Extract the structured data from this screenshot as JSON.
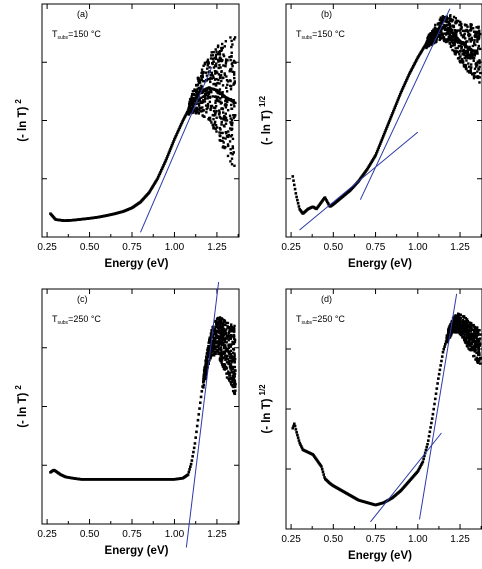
{
  "chart_data": [
    {
      "panel": "(a)",
      "type": "scatter",
      "annotation": {
        "main": "T",
        "sub": "subs",
        "rest": "=150 °C"
      },
      "xlabel": "Energy  (eV)",
      "ylabel": {
        "main": "(- ln T)",
        "exp": "2"
      },
      "xlim": [
        0.22,
        1.38
      ],
      "xticks": [
        0.25,
        0.5,
        0.75,
        1.0,
        1.25
      ],
      "xtick_labels": [
        "0.25",
        "0.50",
        "0.75",
        "1.00",
        "1.25"
      ],
      "ylim": [
        0,
        1
      ],
      "curve": {
        "x": [
          0.27,
          0.3,
          0.35,
          0.4,
          0.45,
          0.5,
          0.55,
          0.6,
          0.65,
          0.7,
          0.75,
          0.8,
          0.85,
          0.9,
          0.95,
          1.0,
          1.05,
          1.1,
          1.15,
          1.2,
          1.25,
          1.3,
          1.35
        ],
        "y": [
          0.1,
          0.075,
          0.07,
          0.072,
          0.076,
          0.08,
          0.085,
          0.092,
          0.1,
          0.11,
          0.125,
          0.15,
          0.19,
          0.25,
          0.33,
          0.42,
          0.5,
          0.57,
          0.62,
          0.64,
          0.63,
          0.6,
          0.58
        ]
      },
      "scatter_spread": {
        "x0": 1.08,
        "x1": 1.36,
        "amp0": 0.02,
        "amp1": 0.3
      },
      "fit_lines": [
        {
          "x": [
            0.8,
            1.22
          ],
          "y": [
            0.02,
            0.73
          ]
        }
      ]
    },
    {
      "panel": "(b)",
      "type": "scatter",
      "annotation": {
        "main": "T",
        "sub": "subs",
        "rest": "=150 °C"
      },
      "xlabel": "Energy  (eV)",
      "ylabel": {
        "main": "(- ln T)",
        "exp": "1/2"
      },
      "xlim": [
        0.22,
        1.38
      ],
      "xticks": [
        0.25,
        0.5,
        0.75,
        1.0,
        1.25
      ],
      "xtick_labels": [
        "0.25",
        "0.50",
        "0.75",
        "1.00",
        "1.25"
      ],
      "ylim": [
        0,
        1
      ],
      "curve": {
        "x": [
          0.26,
          0.28,
          0.3,
          0.32,
          0.35,
          0.38,
          0.4,
          0.43,
          0.45,
          0.48,
          0.5,
          0.55,
          0.6,
          0.65,
          0.7,
          0.75,
          0.8,
          0.85,
          0.9,
          0.95,
          1.0,
          1.05,
          1.1,
          1.15,
          1.2,
          1.25,
          1.3,
          1.35
        ],
        "y": [
          0.26,
          0.18,
          0.12,
          0.1,
          0.12,
          0.13,
          0.12,
          0.15,
          0.17,
          0.13,
          0.14,
          0.17,
          0.2,
          0.24,
          0.29,
          0.35,
          0.44,
          0.53,
          0.62,
          0.7,
          0.77,
          0.83,
          0.87,
          0.9,
          0.88,
          0.84,
          0.81,
          0.79
        ]
      },
      "scatter_spread": {
        "x0": 1.05,
        "x1": 1.37,
        "amp0": 0.02,
        "amp1": 0.13
      },
      "fit_lines": [
        {
          "x": [
            0.3,
            1.0
          ],
          "y": [
            0.03,
            0.45
          ]
        },
        {
          "x": [
            0.66,
            1.19
          ],
          "y": [
            0.16,
            0.98
          ]
        }
      ]
    },
    {
      "panel": "(c)",
      "type": "scatter",
      "annotation": {
        "main": "T",
        "sub": "subs",
        "rest": "=250 °C"
      },
      "xlabel": "Energy  (eV)",
      "ylabel": {
        "main": "(- ln T)",
        "exp": "2"
      },
      "xlim": [
        0.22,
        1.38
      ],
      "xticks": [
        0.25,
        0.5,
        0.75,
        1.0,
        1.25
      ],
      "xtick_labels": [
        "0.25",
        "0.50",
        "0.75",
        "1.00",
        "1.25"
      ],
      "ylim": [
        0,
        1
      ],
      "curve": {
        "x": [
          0.27,
          0.29,
          0.31,
          0.33,
          0.36,
          0.4,
          0.45,
          0.5,
          0.6,
          0.7,
          0.8,
          0.9,
          1.0,
          1.05,
          1.08,
          1.1,
          1.12,
          1.14,
          1.16,
          1.18,
          1.2,
          1.22,
          1.25,
          1.28,
          1.3,
          1.33,
          1.35
        ],
        "y": [
          0.22,
          0.23,
          0.22,
          0.21,
          0.2,
          0.195,
          0.19,
          0.19,
          0.19,
          0.19,
          0.19,
          0.19,
          0.19,
          0.195,
          0.21,
          0.26,
          0.34,
          0.45,
          0.56,
          0.65,
          0.72,
          0.77,
          0.8,
          0.78,
          0.75,
          0.72,
          0.7
        ]
      },
      "scatter_spread": {
        "x0": 1.17,
        "x1": 1.36,
        "amp0": 0.03,
        "amp1": 0.15
      },
      "fit_lines": [
        {
          "x": [
            1.07,
            1.26
          ],
          "y": [
            -0.1,
            1.03
          ]
        }
      ]
    },
    {
      "panel": "(d)",
      "type": "scatter",
      "annotation": {
        "main": "T",
        "sub": "subs",
        "rest": "=250 °C"
      },
      "xlabel": "Energy  (eV)",
      "ylabel": {
        "main": "(- ln T)",
        "exp": "1/2"
      },
      "xlim": [
        0.22,
        1.38
      ],
      "xticks": [
        0.25,
        0.5,
        0.75,
        1.0,
        1.25
      ],
      "xtick_labels": [
        "0.25",
        "0.50",
        "0.75",
        "1.00",
        "1.25"
      ],
      "ylim": [
        0,
        1
      ],
      "curve": {
        "x": [
          0.26,
          0.27,
          0.28,
          0.3,
          0.32,
          0.35,
          0.38,
          0.4,
          0.43,
          0.45,
          0.48,
          0.5,
          0.55,
          0.6,
          0.65,
          0.7,
          0.75,
          0.8,
          0.85,
          0.9,
          0.95,
          1.0,
          1.03,
          1.06,
          1.09,
          1.12,
          1.15,
          1.18,
          1.21,
          1.24,
          1.28,
          1.32,
          1.36
        ],
        "y": [
          0.42,
          0.44,
          0.41,
          0.36,
          0.33,
          0.32,
          0.31,
          0.29,
          0.26,
          0.21,
          0.19,
          0.18,
          0.16,
          0.14,
          0.12,
          0.11,
          0.1,
          0.11,
          0.13,
          0.16,
          0.2,
          0.24,
          0.28,
          0.36,
          0.48,
          0.62,
          0.74,
          0.81,
          0.85,
          0.86,
          0.83,
          0.79,
          0.76
        ]
      },
      "scatter_spread": {
        "x0": 1.17,
        "x1": 1.37,
        "amp0": 0.02,
        "amp1": 0.08
      },
      "fit_lines": [
        {
          "x": [
            0.72,
            1.14
          ],
          "y": [
            0.03,
            0.4
          ]
        },
        {
          "x": [
            1.01,
            1.23
          ],
          "y": [
            0.04,
            0.98
          ]
        }
      ]
    }
  ]
}
